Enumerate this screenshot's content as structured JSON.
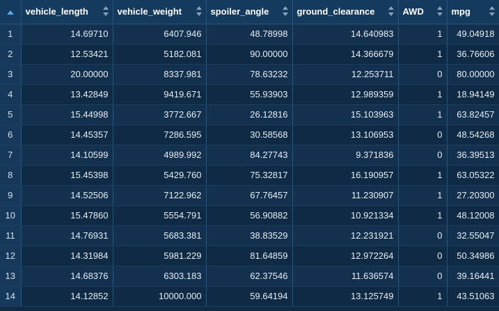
{
  "columns": [
    "vehicle_length",
    "vehicle_weight",
    "spoiler_angle",
    "ground_clearance",
    "AWD",
    "mpg"
  ],
  "rows": [
    [
      "1",
      "14.69710",
      "6407.946",
      "48.78998",
      "14.640983",
      "1",
      "49.04918"
    ],
    [
      "2",
      "12.53421",
      "5182.081",
      "90.00000",
      "14.366679",
      "1",
      "36.76606"
    ],
    [
      "3",
      "20.00000",
      "8337.981",
      "78.63232",
      "12.253711",
      "0",
      "80.00000"
    ],
    [
      "4",
      "13.42849",
      "9419.671",
      "55.93903",
      "12.989359",
      "1",
      "18.94149"
    ],
    [
      "5",
      "15.44998",
      "3772.667",
      "26.12816",
      "15.103963",
      "1",
      "63.82457"
    ],
    [
      "6",
      "14.45357",
      "7286.595",
      "30.58568",
      "13.106953",
      "0",
      "48.54268"
    ],
    [
      "7",
      "14.10599",
      "4989.992",
      "84.27743",
      "9.371836",
      "0",
      "36.39513"
    ],
    [
      "8",
      "15.45398",
      "5429.760",
      "75.32817",
      "16.190957",
      "1",
      "63.05322"
    ],
    [
      "9",
      "14.52506",
      "7122.962",
      "67.76457",
      "11.230907",
      "1",
      "27.20300"
    ],
    [
      "10",
      "15.47860",
      "5554.791",
      "56.90882",
      "10.921334",
      "1",
      "48.12008"
    ],
    [
      "11",
      "14.76931",
      "5683.381",
      "38.83529",
      "12.231921",
      "0",
      "32.55047"
    ],
    [
      "12",
      "14.31984",
      "5981.229",
      "81.64859",
      "12.972264",
      "0",
      "50.34986"
    ],
    [
      "13",
      "14.68376",
      "6303.183",
      "62.37546",
      "11.636574",
      "0",
      "39.16441"
    ],
    [
      "14",
      "14.12852",
      "10000.000",
      "59.64194",
      "13.125749",
      "1",
      "43.51063"
    ]
  ]
}
